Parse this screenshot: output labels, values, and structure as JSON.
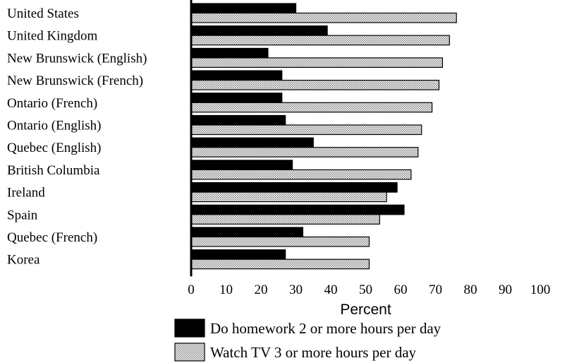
{
  "chart_data": {
    "type": "bar",
    "orientation": "horizontal",
    "categories": [
      "United States",
      "United Kingdom",
      "New Brunswick (English)",
      "New Brunswick (French)",
      "Ontario (French)",
      "Ontario (English)",
      "Quebec (English)",
      "British Columbia",
      "Ireland",
      "Spain",
      "Quebec (French)",
      "Korea"
    ],
    "series": [
      {
        "name": "Do homework 2 or more hours per day",
        "pattern": "solid",
        "color": "#000000",
        "values": [
          30,
          39,
          22,
          26,
          26,
          27,
          35,
          29,
          59,
          61,
          32,
          27
        ]
      },
      {
        "name": "Watch TV 3 or more hours per day",
        "pattern": "dotted",
        "color": "#d9d9d9",
        "values": [
          76,
          74,
          72,
          71,
          69,
          66,
          65,
          63,
          56,
          54,
          51,
          51
        ]
      }
    ],
    "xlabel": "Percent",
    "ylabel": "",
    "title": "",
    "xlim": [
      0,
      100
    ],
    "xticks": [
      0,
      10,
      20,
      30,
      40,
      50,
      60,
      70,
      80,
      90,
      100
    ],
    "legend_position": "bottom",
    "grid": false
  }
}
